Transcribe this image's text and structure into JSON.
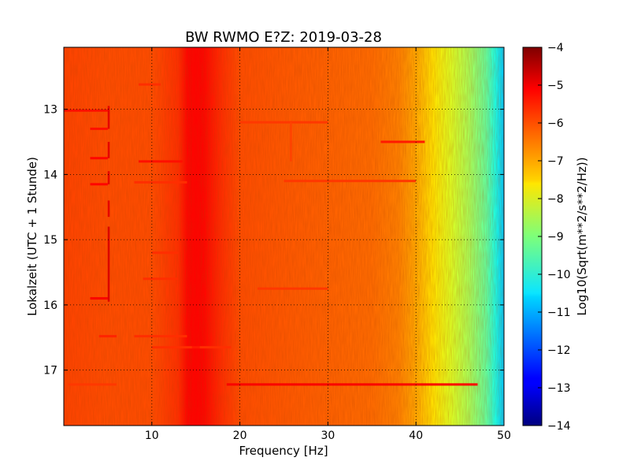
{
  "chart_data": {
    "type": "heatmap",
    "title": "BW RWMO E?Z: 2019-03-28",
    "xlabel": "Frequency [Hz]",
    "ylabel": "Lokalzeit (UTC + 1 Stunde)",
    "xlim": [
      0,
      50
    ],
    "ylim": [
      12.05,
      17.85
    ],
    "y_inverted": true,
    "x_ticks": [
      10,
      20,
      30,
      40,
      50
    ],
    "x_tick_labels": [
      "10",
      "20",
      "30",
      "40",
      "50"
    ],
    "y_ticks": [
      13,
      14,
      15,
      16,
      17
    ],
    "y_tick_labels": [
      "13",
      "14",
      "15",
      "16",
      "17"
    ],
    "grid": true,
    "colormap": "jet",
    "colorbar": {
      "label": "Log10(Sqrt(m**2/s**2/Hz))",
      "range": [
        -14,
        -4
      ],
      "ticks": [
        -4,
        -5,
        -6,
        -7,
        -8,
        -9,
        -10,
        -11,
        -12,
        -13,
        -14
      ],
      "tick_labels": [
        "−4",
        "−5",
        "−6",
        "−7",
        "−8",
        "−9",
        "−10",
        "−11",
        "−12",
        "−13",
        "−14"
      ]
    },
    "spectral_profile": {
      "frequency_hz": [
        0,
        5,
        10,
        13,
        14,
        15,
        16,
        17,
        18,
        20,
        25,
        30,
        35,
        38,
        40,
        42,
        44,
        46,
        48,
        49,
        50
      ],
      "level": [
        -5.9,
        -6.0,
        -6.0,
        -5.7,
        -5.3,
        -5.2,
        -5.3,
        -5.5,
        -5.7,
        -6.0,
        -6.1,
        -6.2,
        -6.3,
        -6.5,
        -6.9,
        -7.5,
        -8.1,
        -8.6,
        -9.3,
        -10.0,
        -10.8
      ]
    },
    "horizontal_events": [
      {
        "time_h": 17.22,
        "f_start_hz": 18.5,
        "f_end_hz": 47,
        "level": -5.2
      },
      {
        "time_h": 17.22,
        "f_start_hz": 0.5,
        "f_end_hz": 6,
        "level": -5.8
      },
      {
        "time_h": 16.65,
        "f_start_hz": 10,
        "f_end_hz": 19,
        "level": -5.7
      },
      {
        "time_h": 16.48,
        "f_start_hz": 4,
        "f_end_hz": 6,
        "level": -5.6
      },
      {
        "time_h": 16.48,
        "f_start_hz": 8,
        "f_end_hz": 14,
        "level": -5.7
      },
      {
        "time_h": 13.8,
        "f_start_hz": 8.5,
        "f_end_hz": 13.5,
        "level": -5.4
      },
      {
        "time_h": 14.12,
        "f_start_hz": 8,
        "f_end_hz": 14,
        "level": -5.7
      },
      {
        "time_h": 14.1,
        "f_start_hz": 25,
        "f_end_hz": 40,
        "level": -5.8
      },
      {
        "time_h": 13.5,
        "f_start_hz": 36,
        "f_end_hz": 41,
        "level": -5.5
      },
      {
        "time_h": 13.02,
        "f_start_hz": 0,
        "f_end_hz": 5,
        "level": -5.4
      },
      {
        "time_h": 13.3,
        "f_start_hz": 3,
        "f_end_hz": 5,
        "level": -5.4
      },
      {
        "time_h": 13.75,
        "f_start_hz": 3,
        "f_end_hz": 5,
        "level": -5.3
      },
      {
        "time_h": 14.15,
        "f_start_hz": 3,
        "f_end_hz": 5,
        "level": -5.3
      },
      {
        "time_h": 15.9,
        "f_start_hz": 3,
        "f_end_hz": 5,
        "level": -5.2
      },
      {
        "time_h": 15.2,
        "f_start_hz": 10,
        "f_end_hz": 13,
        "level": -5.7
      },
      {
        "time_h": 15.6,
        "f_start_hz": 9,
        "f_end_hz": 13,
        "level": -5.7
      },
      {
        "time_h": 12.62,
        "f_start_hz": 8.5,
        "f_end_hz": 11,
        "level": -5.7
      },
      {
        "time_h": 13.2,
        "f_start_hz": 20,
        "f_end_hz": 30,
        "level": -5.8
      },
      {
        "time_h": 15.75,
        "f_start_hz": 22,
        "f_end_hz": 30,
        "level": -5.8
      }
    ],
    "vertical_events": [
      {
        "freq_hz": 5.1,
        "t_start_h": 12.95,
        "t_end_h": 13.3,
        "level": -5.0
      },
      {
        "freq_hz": 5.1,
        "t_start_h": 13.5,
        "t_end_h": 13.75,
        "level": -5.0
      },
      {
        "freq_hz": 5.1,
        "t_start_h": 13.95,
        "t_end_h": 14.15,
        "level": -5.0
      },
      {
        "freq_hz": 5.1,
        "t_start_h": 14.4,
        "t_end_h": 14.65,
        "level": -5.0
      },
      {
        "freq_hz": 5.1,
        "t_start_h": 14.8,
        "t_end_h": 15.95,
        "level": -4.9
      },
      {
        "freq_hz": 15.0,
        "t_start_h": 12.05,
        "t_end_h": 17.85,
        "level": -5.3
      },
      {
        "freq_hz": 25.8,
        "t_start_h": 13.2,
        "t_end_h": 13.8,
        "level": -5.9
      }
    ]
  }
}
